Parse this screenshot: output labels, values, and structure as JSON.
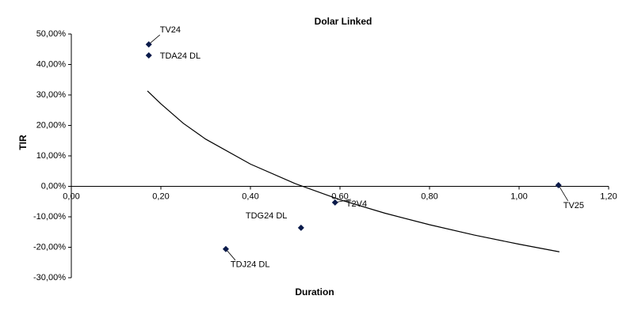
{
  "chart_data": {
    "type": "scatter",
    "title": "Dolar Linked",
    "x_label": "Duration",
    "y_label": "TIR",
    "series": [
      {
        "color": "#0a1a4a",
        "x": [
          0.173,
          0.173,
          0.345,
          0.513,
          0.589,
          1.088
        ],
        "values": [
          46.6,
          43.0,
          -20.6,
          -13.6,
          -5.3,
          0.4
        ],
        "point_labels": [
          "TV24",
          "TDA24 DL",
          "TDJ24 DL",
          "TDG24 DL",
          "T2V4",
          "TV25"
        ]
      },
      {
        "type": "line",
        "color": "#000000",
        "x": [
          0.17,
          0.2,
          0.25,
          0.3,
          0.4,
          0.5,
          0.6,
          0.7,
          0.8,
          0.9,
          1.0,
          1.09
        ],
        "values": [
          31.3,
          27.1,
          20.7,
          15.5,
          7.3,
          0.9,
          -4.4,
          -8.8,
          -12.6,
          -16.0,
          -19.0,
          -21.5
        ]
      }
    ],
    "xlim": [
      0,
      1.2
    ],
    "xticks": [
      {
        "value": 0,
        "label": "0,00"
      },
      {
        "value": 0.2,
        "label": "0,20"
      },
      {
        "value": 0.4,
        "label": "0,40"
      },
      {
        "value": 0.6,
        "label": "0,60"
      },
      {
        "value": 0.8,
        "label": "0,80"
      },
      {
        "value": 1.0,
        "label": "1,00"
      },
      {
        "value": 1.2,
        "label": "1,20"
      }
    ],
    "ylim": [
      -30,
      50
    ],
    "yticks": [
      {
        "value": -30,
        "label": "-30,00%"
      },
      {
        "value": -20,
        "label": "-20,00%"
      },
      {
        "value": -10,
        "label": "-10,00%"
      },
      {
        "value": 0,
        "label": "0,00%"
      },
      {
        "value": 10,
        "label": "10,00%"
      },
      {
        "value": 20,
        "label": "20,00%"
      },
      {
        "value": 30,
        "label": "30,00%"
      },
      {
        "value": 40,
        "label": "40,00%"
      },
      {
        "value": 50,
        "label": "50,00%"
      }
    ]
  }
}
